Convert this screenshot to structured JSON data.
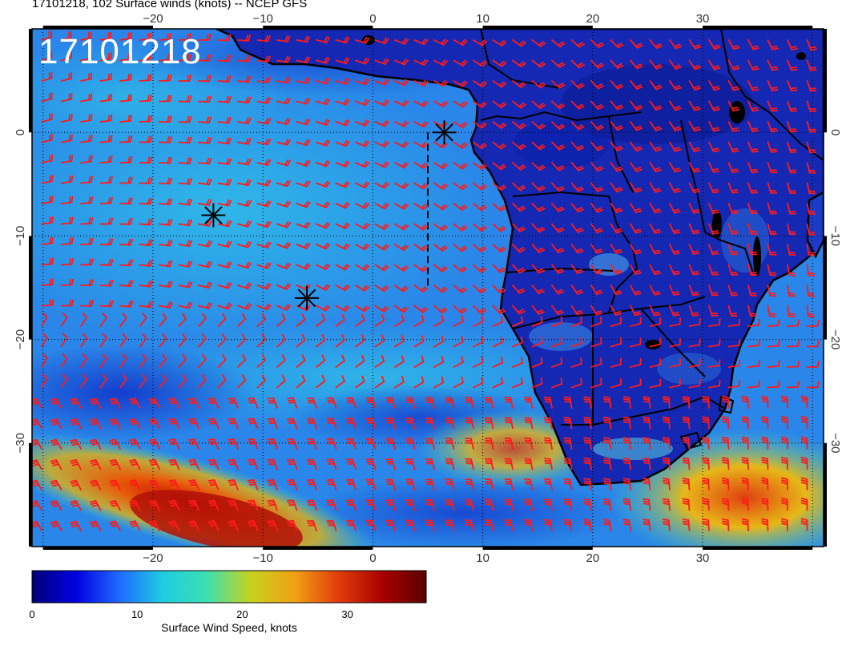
{
  "title": "17101218, 102 Surface winds (knots) -- NCEP GFS",
  "stamp": "17101218",
  "colors": {
    "barb": "#ff1a1a",
    "coast": "#000000",
    "ocean_low": "#1a3fd6",
    "ocean_high": "#b01010"
  },
  "map": {
    "lon_range": [
      -31,
      41
    ],
    "lat_range": [
      -40,
      10
    ],
    "lon_ticks": [
      {
        "value": -20,
        "label": "−20"
      },
      {
        "value": -10,
        "label": "−10"
      },
      {
        "value": 0,
        "label": "0"
      },
      {
        "value": 10,
        "label": "10"
      },
      {
        "value": 20,
        "label": "20"
      },
      {
        "value": 30,
        "label": "30"
      }
    ],
    "lat_ticks": [
      {
        "value": 0,
        "label": "0"
      },
      {
        "value": -10,
        "label": "−10"
      },
      {
        "value": -20,
        "label": "−20"
      },
      {
        "value": -30,
        "label": "−30"
      }
    ],
    "markers": [
      {
        "name": "marker-1",
        "lon": 6.5,
        "lat": 0.0
      },
      {
        "name": "marker-2",
        "lon": -14.5,
        "lat": -8.0
      },
      {
        "name": "marker-3",
        "lon": -6.0,
        "lat": -16.0
      }
    ],
    "track": [
      [
        5,
        0
      ],
      [
        5,
        -15
      ]
    ]
  },
  "colorbar": {
    "label": "Surface Wind Speed, knots",
    "ticks": [
      {
        "value": 0,
        "label": "0"
      },
      {
        "value": 10,
        "label": "10"
      },
      {
        "value": 20,
        "label": "20"
      },
      {
        "value": 30,
        "label": "30"
      }
    ],
    "range": [
      0,
      37.5
    ],
    "stops": [
      "#00007a",
      "#0000e0",
      "#1f6bff",
      "#1ecde0",
      "#3de0b0",
      "#c8d21e",
      "#f0a014",
      "#e03c0a",
      "#a80000",
      "#5a0000"
    ]
  }
}
